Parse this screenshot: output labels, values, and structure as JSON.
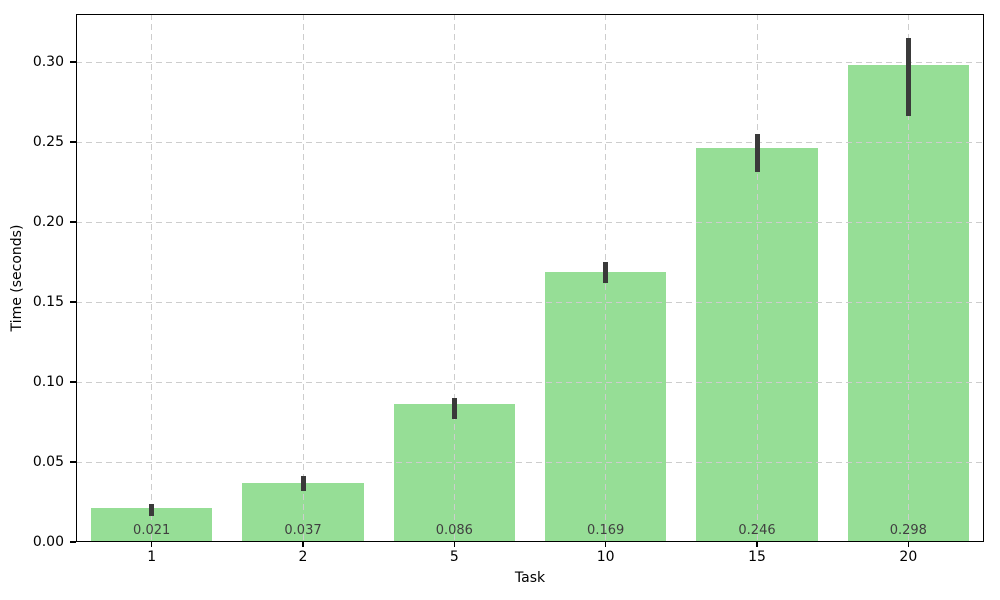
{
  "chart_data": {
    "type": "bar",
    "title": "",
    "xlabel": "Task",
    "ylabel": "Time (seconds)",
    "categories": [
      "1",
      "2",
      "5",
      "10",
      "15",
      "20"
    ],
    "values": [
      0.021,
      0.037,
      0.086,
      0.169,
      0.246,
      0.298
    ],
    "bar_value_labels": [
      "0.021",
      "0.037",
      "0.086",
      "0.169",
      "0.246",
      "0.298"
    ],
    "error_low": [
      0.016,
      0.032,
      0.077,
      0.162,
      0.231,
      0.266
    ],
    "error_high": [
      0.024,
      0.041,
      0.09,
      0.175,
      0.255,
      0.315
    ],
    "y_ticks": [
      0.0,
      0.05,
      0.1,
      0.15,
      0.2,
      0.25,
      0.3
    ],
    "y_tick_labels": [
      "0.00",
      "0.05",
      "0.10",
      "0.15",
      "0.20",
      "0.25",
      "0.30"
    ],
    "ylim": [
      0,
      0.33
    ],
    "bar_width_fraction": 0.8,
    "grid": "dashed, horizontal at y-ticks and vertical at bar centers, drawn over bars",
    "legend": "none",
    "colors": {
      "bar": "#96de96",
      "error_bar": "#3a3a3a",
      "grid": "#cdcdcd",
      "annotation": "#404040",
      "axis": "#000000",
      "background": "#ffffff"
    }
  }
}
